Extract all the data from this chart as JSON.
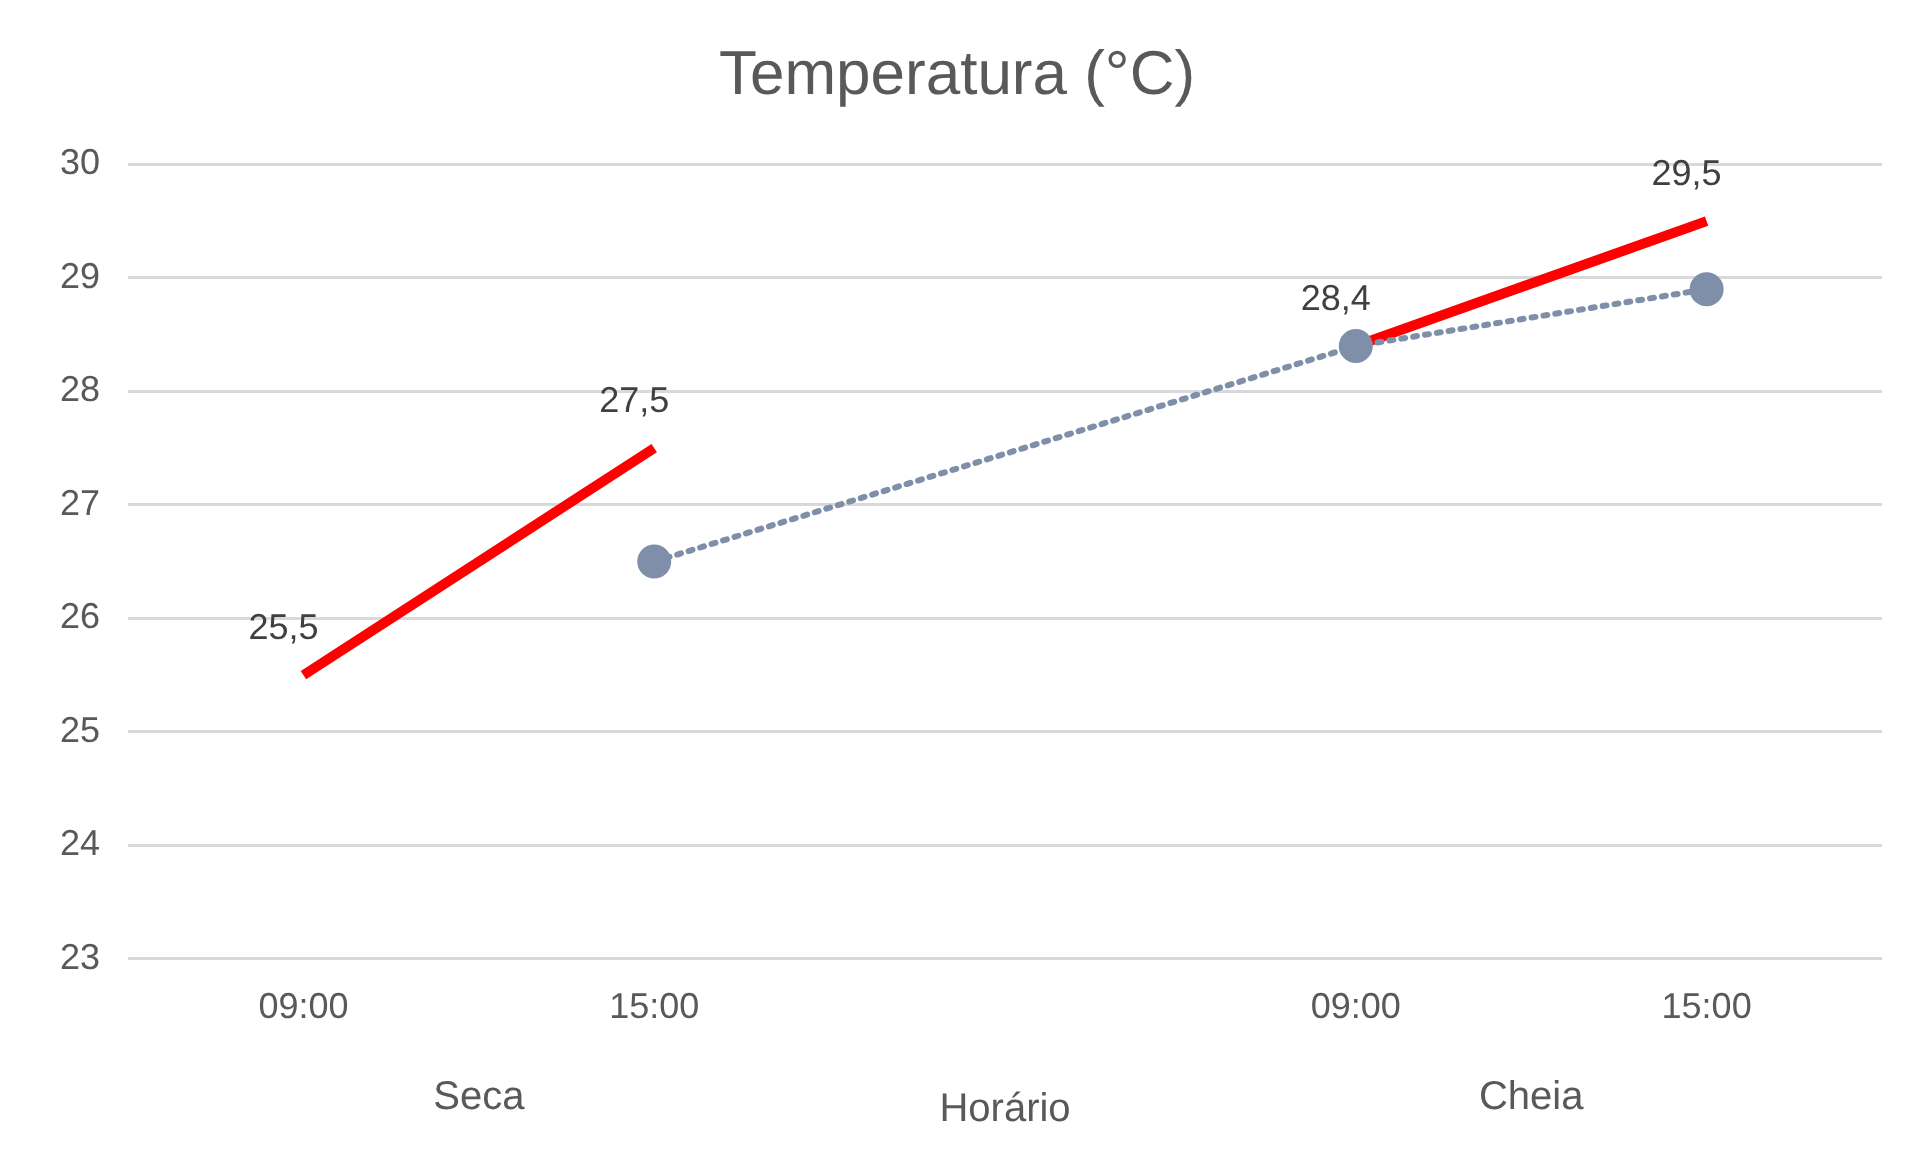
{
  "chart_data": {
    "type": "line",
    "title": "Temperatura (°C)",
    "xlabel": "Horário",
    "categories": [
      "09:00",
      "15:00",
      null,
      "09:00",
      "15:00"
    ],
    "annotations": [
      "Seca",
      "Cheia"
    ],
    "series": [
      {
        "color": "#7f8fa9",
        "values": [
          null,
          26.5,
          null,
          28.4,
          28.9
        ],
        "marker": "circle",
        "line_style": "dotted"
      },
      {
        "color": "#ff0000",
        "values": [
          25.5,
          27.5,
          null,
          28.4,
          29.5
        ],
        "marker": "none",
        "line_style": "solid",
        "value_labels": [
          "25,5",
          "27,5",
          null,
          "28,4",
          "29,5"
        ]
      }
    ],
    "ylim": [
      23,
      30
    ],
    "yticks": [
      23,
      24,
      25,
      26,
      27,
      28,
      29,
      30
    ],
    "grid": "y",
    "legend": false
  }
}
